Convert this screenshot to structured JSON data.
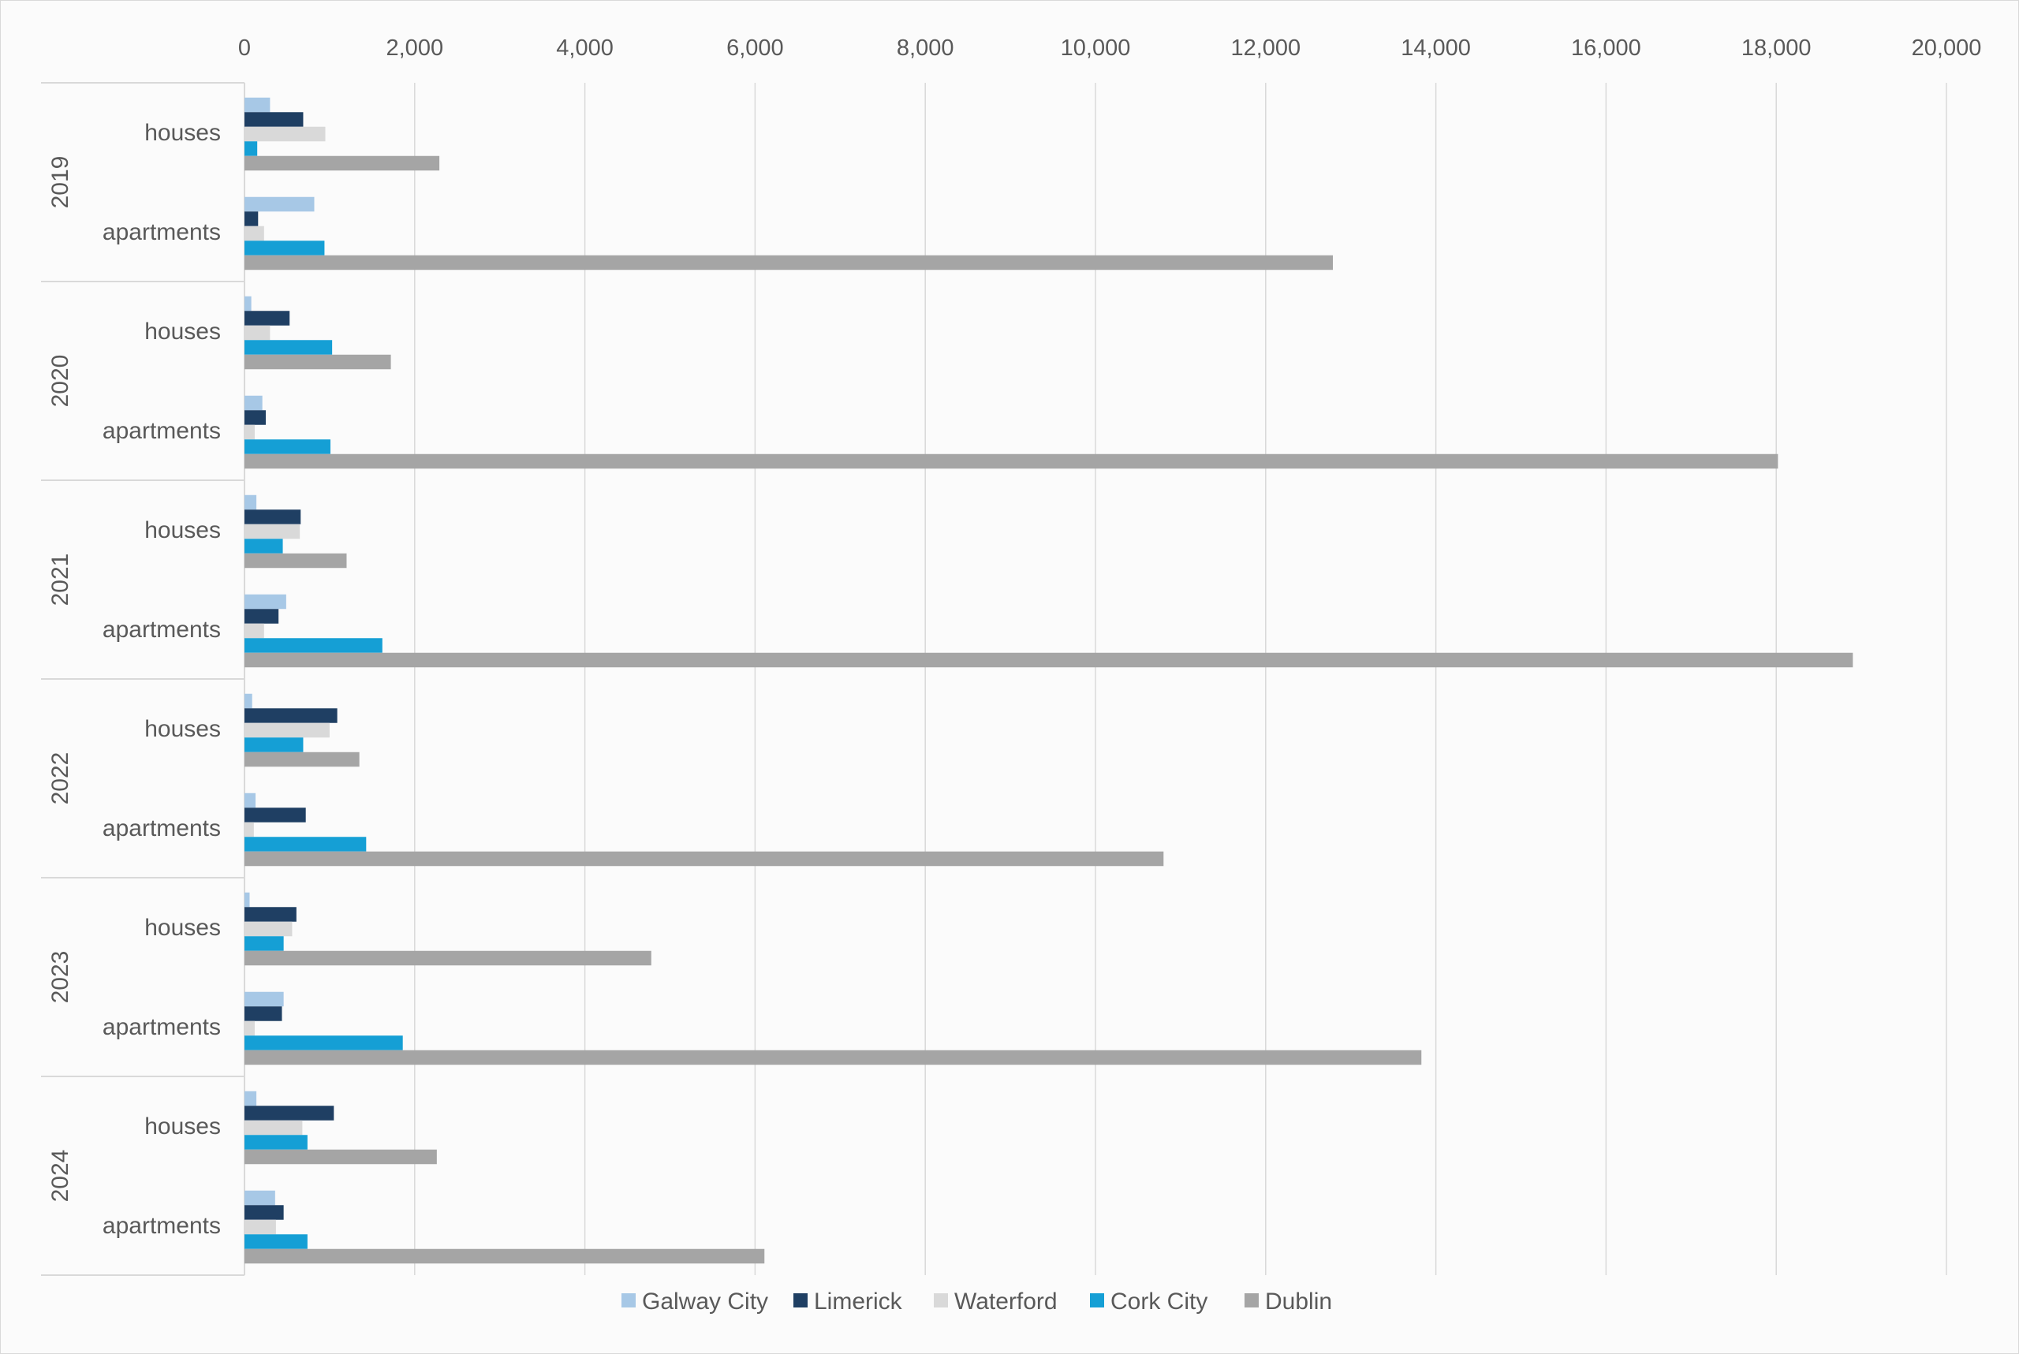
{
  "chart_data": {
    "type": "bar",
    "orientation": "horizontal",
    "title": "",
    "xlabel": "",
    "ylabel": "",
    "xlim": [
      0,
      20000
    ],
    "x_ticks": [
      "0",
      "2,000",
      "4,000",
      "6,000",
      "8,000",
      "10,000",
      "12,000",
      "14,000",
      "16,000",
      "18,000",
      "20,000"
    ],
    "x_tick_values": [
      0,
      2000,
      4000,
      6000,
      8000,
      10000,
      12000,
      14000,
      16000,
      18000,
      20000
    ],
    "grid": "vertical",
    "legend_position": "bottom",
    "groups": [
      "2019",
      "2020",
      "2021",
      "2022",
      "2023",
      "2024"
    ],
    "subcategories": [
      "houses",
      "apartments"
    ],
    "series": [
      {
        "name": "Galway City",
        "color": "#a7c8e6",
        "values": [
          [
            300,
            820
          ],
          [
            80,
            210
          ],
          [
            140,
            490
          ],
          [
            90,
            130
          ],
          [
            60,
            460
          ],
          [
            140,
            360
          ]
        ]
      },
      {
        "name": "Limerick",
        "color": "#1f3f63",
        "values": [
          [
            690,
            160
          ],
          [
            530,
            250
          ],
          [
            660,
            400
          ],
          [
            1090,
            720
          ],
          [
            610,
            440
          ],
          [
            1050,
            460
          ]
        ]
      },
      {
        "name": "Waterford",
        "color": "#d9d9d9",
        "values": [
          [
            950,
            230
          ],
          [
            300,
            120
          ],
          [
            650,
            230
          ],
          [
            1000,
            110
          ],
          [
            560,
            120
          ],
          [
            680,
            370
          ]
        ]
      },
      {
        "name": "Cork City",
        "color": "#159fd5",
        "values": [
          [
            150,
            940
          ],
          [
            1030,
            1010
          ],
          [
            450,
            1620
          ],
          [
            690,
            1430
          ],
          [
            460,
            1860
          ],
          [
            740,
            740
          ]
        ]
      },
      {
        "name": "Dublin",
        "color": "#a5a5a5",
        "values": [
          [
            2290,
            12790
          ],
          [
            1720,
            18020
          ],
          [
            1200,
            18900
          ],
          [
            1350,
            10800
          ],
          [
            4780,
            13830
          ],
          [
            2260,
            6110
          ]
        ]
      }
    ]
  }
}
